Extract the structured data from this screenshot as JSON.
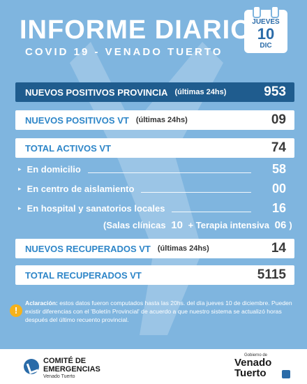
{
  "header": {
    "title": "INFORME DIARIO",
    "subtitle": "COVID 19 - VENADO TUERTO",
    "calendar": {
      "weekday": "JUEVES",
      "day": "10",
      "month": "DIC"
    }
  },
  "rows": {
    "positivos_provincia": {
      "label": "NUEVOS POSITIVOS PROVINCIA",
      "note": "(últimas 24hs)",
      "value": "953"
    },
    "positivos_vt": {
      "label": "NUEVOS POSITIVOS VT",
      "note": "(últimas 24hs)",
      "value": "09"
    },
    "total_activos": {
      "label": "TOTAL ACTIVOS VT",
      "value": "74"
    },
    "domicilio": {
      "label": "En domicilio",
      "value": "58"
    },
    "aislamiento": {
      "label": "En centro de aislamiento",
      "value": "00"
    },
    "hospital": {
      "label": "En hospital y sanatorios locales",
      "value": "16"
    },
    "salas": {
      "label": "(Salas clínicas",
      "value": "10",
      "plus": "+ Terapia intensiva",
      "terapia": "06",
      "close": ")"
    },
    "recuperados_nuevos": {
      "label": "NUEVOS RECUPERADOS VT",
      "note": "(últimas 24hs)",
      "value": "14"
    },
    "recuperados_total": {
      "label": "TOTAL RECUPERADOS VT",
      "value": "5115"
    }
  },
  "aclaracion": {
    "title": "Aclaración:",
    "text": "estos datos fueron computados hasta las 20hs. del día jueves 10 de diciembre. Pueden existir diferencias con el 'Boletín Provincial' de acuerdo a que nuestro sistema se actualizó horas después del último recuento provincial."
  },
  "footer": {
    "left_title_1": "COMITÉ DE",
    "left_title_2": "EMERGENCIAS",
    "left_sub": "Venado Tuerto",
    "right_small": "Gobierno de",
    "right_title_1": "Venado",
    "right_title_2": "Tuerto"
  },
  "colors": {
    "background": "#7fb5df",
    "accent_dark": "#1f5c8e",
    "label_blue": "#2e86c8",
    "warning": "#f6b21b"
  }
}
